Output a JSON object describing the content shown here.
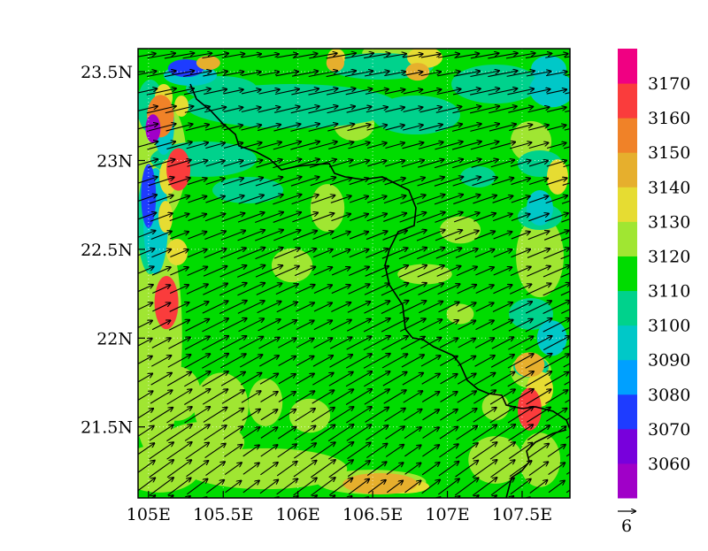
{
  "chart_data": {
    "type": "heatmap",
    "title": "",
    "xlabel": "",
    "ylabel": "",
    "xlim": [
      104.93,
      107.82
    ],
    "ylim": [
      21.1,
      23.63
    ],
    "x_ticks": [
      {
        "value": 105.0,
        "label": "105E"
      },
      {
        "value": 105.5,
        "label": "105.5E"
      },
      {
        "value": 106.0,
        "label": "106E"
      },
      {
        "value": 106.5,
        "label": "106.5E"
      },
      {
        "value": 107.0,
        "label": "107E"
      },
      {
        "value": 107.5,
        "label": "107.5E"
      }
    ],
    "y_ticks": [
      {
        "value": 21.5,
        "label": "21.5N"
      },
      {
        "value": 22.0,
        "label": "22N"
      },
      {
        "value": 22.5,
        "label": "22.5N"
      },
      {
        "value": 23.0,
        "label": "23N"
      },
      {
        "value": 23.5,
        "label": "23.5N"
      }
    ],
    "colorbar": {
      "bins": [
        {
          "color": "#a000c8",
          "label": ""
        },
        {
          "color": "#7800dc",
          "label": "3060"
        },
        {
          "color": "#1e3cff",
          "label": "3070"
        },
        {
          "color": "#00a0ff",
          "label": "3080"
        },
        {
          "color": "#00c8c8",
          "label": "3090"
        },
        {
          "color": "#00d28c",
          "label": "3100"
        },
        {
          "color": "#00dc00",
          "label": "3110"
        },
        {
          "color": "#a0e632",
          "label": "3120"
        },
        {
          "color": "#e6dc32",
          "label": "3130"
        },
        {
          "color": "#e6af2d",
          "label": "3140"
        },
        {
          "color": "#f08228",
          "label": "3150"
        },
        {
          "color": "#fa3c3c",
          "label": "3160"
        },
        {
          "color": "#f00082",
          "label": "3170"
        }
      ]
    },
    "vector_reference": {
      "label": "6"
    },
    "grid": true,
    "contour_blobs": [
      {
        "x": 105.08,
        "y": 23.25,
        "rx": 0.09,
        "ry": 0.12,
        "color": "#f08228"
      },
      {
        "x": 105.03,
        "y": 23.18,
        "rx": 0.05,
        "ry": 0.08,
        "color": "#a000c8"
      },
      {
        "x": 105.2,
        "y": 22.95,
        "rx": 0.08,
        "ry": 0.12,
        "color": "#fa3c3c"
      },
      {
        "x": 105.0,
        "y": 22.8,
        "rx": 0.05,
        "ry": 0.18,
        "color": "#1e3cff"
      },
      {
        "x": 105.12,
        "y": 22.2,
        "rx": 0.08,
        "ry": 0.15,
        "color": "#fa3c3c"
      },
      {
        "x": 105.25,
        "y": 23.52,
        "rx": 0.12,
        "ry": 0.05,
        "color": "#1e3cff"
      },
      {
        "x": 105.4,
        "y": 23.55,
        "rx": 0.08,
        "ry": 0.04,
        "color": "#e6af2d"
      },
      {
        "x": 106.25,
        "y": 23.55,
        "rx": 0.06,
        "ry": 0.05,
        "color": "#e6af2d"
      },
      {
        "x": 106.8,
        "y": 23.5,
        "rx": 0.08,
        "ry": 0.05,
        "color": "#e6af2d"
      },
      {
        "x": 107.55,
        "y": 21.6,
        "rx": 0.08,
        "ry": 0.12,
        "color": "#fa3c3c"
      },
      {
        "x": 107.55,
        "y": 21.85,
        "rx": 0.1,
        "ry": 0.07,
        "color": "#e6af2d"
      },
      {
        "x": 106.55,
        "y": 21.18,
        "rx": 0.25,
        "ry": 0.06,
        "color": "#e6af2d"
      },
      {
        "x": 107.7,
        "y": 23.4,
        "rx": 0.15,
        "ry": 0.1,
        "color": "#00c8c8"
      },
      {
        "x": 107.7,
        "y": 22.0,
        "rx": 0.1,
        "ry": 0.1,
        "color": "#00c8c8"
      }
    ]
  }
}
